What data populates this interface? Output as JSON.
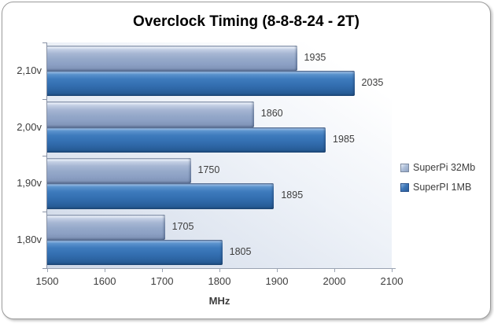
{
  "chart_data": {
    "type": "bar",
    "orientation": "horizontal",
    "title": "Overclock Timing (8-8-8-24 - 2T)",
    "categories": [
      "2,10v",
      "2,00v",
      "1,90v",
      "1,80v"
    ],
    "series": [
      {
        "name": "SuperPi 32Mb",
        "values": [
          1935,
          1860,
          1750,
          1705
        ],
        "color": "#94A8C9"
      },
      {
        "name": "SuperPI 1MB",
        "values": [
          2035,
          1985,
          1895,
          1805
        ],
        "color": "#3470B2"
      }
    ],
    "xlabel": "MHz",
    "ylabel": "",
    "xlim": [
      1500,
      2100
    ],
    "xticks": [
      "1500",
      "1600",
      "1700",
      "1800",
      "1900",
      "2000",
      "2100"
    ],
    "grid": false,
    "legend_position": "right",
    "data_labels": true,
    "plot_bg_gradient": [
      "#ffffff",
      "#ccd6e6"
    ],
    "axis_color": "#9aa3b2",
    "label_color": "#3d3d3d"
  }
}
